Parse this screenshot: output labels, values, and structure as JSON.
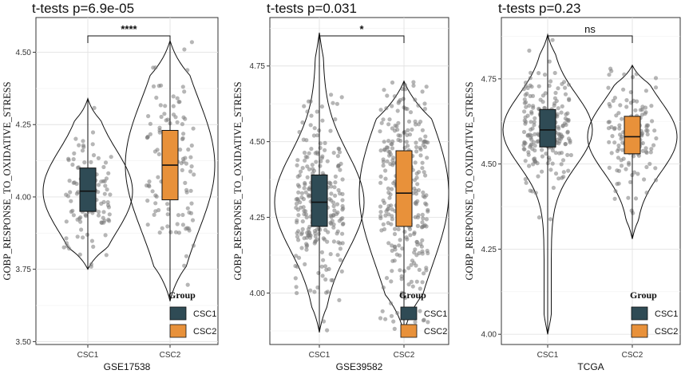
{
  "chart_data": [
    {
      "type": "violin",
      "title": "t-tests p=6.9e-05",
      "xlabel": "GSE17538",
      "ylabel": "GOBP_RESPONSE_TO_OXIDATIVE_STRESS",
      "categories": [
        "CSC1",
        "CSC2"
      ],
      "ylim": [
        3.49,
        4.62
      ],
      "yticks": [
        3.5,
        3.75,
        4.0,
        4.25,
        4.5
      ],
      "ytick_labels": [
        "3.50",
        "3.75",
        "4.00",
        "4.25",
        "4.50"
      ],
      "significance": "****",
      "box": [
        {
          "name": "CSC1",
          "min": 3.75,
          "q1": 3.95,
          "median": 4.02,
          "q3": 4.1,
          "max": 4.34
        },
        {
          "name": "CSC2",
          "min": 3.64,
          "q1": 3.99,
          "median": 4.11,
          "q3": 4.23,
          "max": 4.54
        }
      ],
      "n_points": [
        110,
        120
      ],
      "legend": {
        "title": "Group",
        "entries": [
          "CSC1",
          "CSC2"
        ],
        "position": "bottom-right"
      }
    },
    {
      "type": "violin",
      "title": "t-tests p=0.031",
      "xlabel": "GSE39582",
      "ylabel": "GOBP_RESPONSE_TO_OXIDATIVE_STRESS",
      "categories": [
        "CSC1",
        "CSC2"
      ],
      "ylim": [
        3.83,
        4.91
      ],
      "yticks": [
        4.0,
        4.25,
        4.5,
        4.75
      ],
      "ytick_labels": [
        "4.00",
        "4.25",
        "4.50",
        "4.75"
      ],
      "significance": "*",
      "box": [
        {
          "name": "CSC1",
          "min": 3.87,
          "q1": 4.22,
          "median": 4.3,
          "q3": 4.39,
          "max": 4.86
        },
        {
          "name": "CSC2",
          "min": 3.87,
          "q1": 4.22,
          "median": 4.33,
          "q3": 4.47,
          "max": 4.7
        }
      ],
      "n_points": [
        260,
        300
      ],
      "legend": {
        "title": "Group",
        "entries": [
          "CSC1",
          "CSC2"
        ],
        "position": "bottom-right"
      }
    },
    {
      "type": "violin",
      "title": "t-tests p=0.23",
      "xlabel": "TCGA",
      "ylabel": "GOBP_RESPONSE_TO_OXIDATIVE_STRESS",
      "categories": [
        "CSC1",
        "CSC2"
      ],
      "ylim": [
        3.97,
        4.93
      ],
      "yticks": [
        4.0,
        4.25,
        4.5,
        4.75
      ],
      "ytick_labels": [
        "4.00",
        "4.25",
        "4.50",
        "4.75"
      ],
      "significance": "ns",
      "box": [
        {
          "name": "CSC1",
          "min": 4.0,
          "q1": 4.55,
          "median": 4.6,
          "q3": 4.66,
          "max": 4.88
        },
        {
          "name": "CSC2",
          "min": 4.28,
          "q1": 4.53,
          "median": 4.58,
          "q3": 4.64,
          "max": 4.79
        }
      ],
      "n_points": [
        210,
        130
      ],
      "legend": {
        "title": "Group",
        "entries": [
          "CSC1",
          "CSC2"
        ],
        "position": "bottom-right"
      }
    }
  ],
  "colors": {
    "CSC1": "#2f4b55",
    "CSC2": "#e8913a",
    "points": "#7a7a7a"
  }
}
